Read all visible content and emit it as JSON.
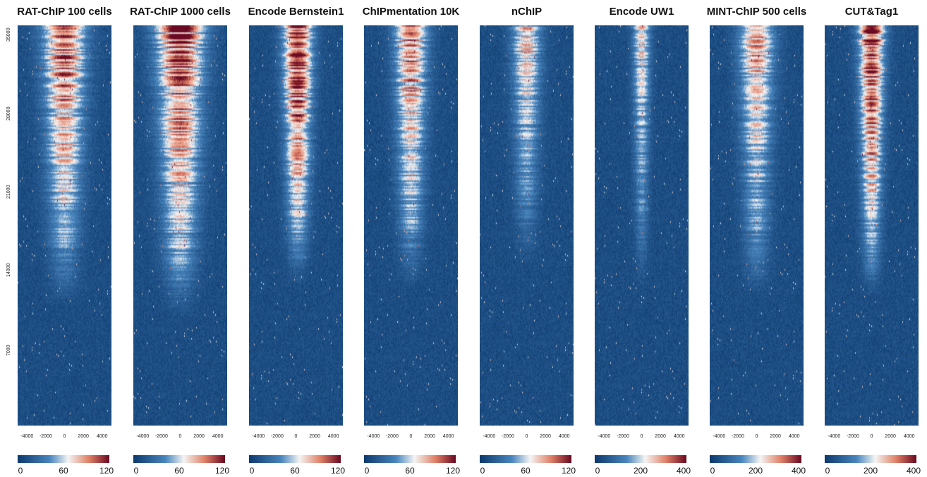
{
  "chart_data": {
    "type": "heatmap",
    "title": "",
    "xlabel": "",
    "ylabel": "",
    "grid": false,
    "colors": {
      "low": "#0d3a6e",
      "mid_low": "#4a86be",
      "mid": "#f5f5f5",
      "mid_high": "#e08066",
      "high": "#6b0a22"
    },
    "x_range": [
      -5000,
      5000
    ],
    "x_ticks": [
      -4000,
      -2000,
      0,
      2000,
      4000
    ],
    "y_range": [
      0,
      35700
    ],
    "y_ticks": [
      7000,
      14000,
      21000,
      28000,
      35000
    ],
    "panels": [
      {
        "name": "RAT-ChIP 100 cells",
        "colorbar": {
          "min": 0,
          "max": 120,
          "ticks": [
            0,
            60,
            120
          ]
        },
        "signal_strength": 0.78,
        "signal_width": 2200,
        "signal_rows_from_top": 0.52,
        "signal_offset": 0
      },
      {
        "name": "RAT-ChIP 1000 cells",
        "colorbar": {
          "min": 0,
          "max": 120,
          "ticks": [
            0,
            60,
            120
          ]
        },
        "signal_strength": 0.85,
        "signal_width": 2400,
        "signal_rows_from_top": 0.55,
        "signal_offset": 0
      },
      {
        "name": "Encode Bernstein1",
        "colorbar": {
          "min": 0,
          "max": 120,
          "ticks": [
            0,
            60,
            120
          ]
        },
        "signal_strength": 0.95,
        "signal_width": 1500,
        "signal_rows_from_top": 0.47,
        "signal_offset": 200
      },
      {
        "name": "ChIPmentation 10K",
        "colorbar": {
          "min": 0,
          "max": 120,
          "ticks": [
            0,
            60,
            120
          ]
        },
        "signal_strength": 0.72,
        "signal_width": 1700,
        "signal_rows_from_top": 0.48,
        "signal_offset": 0
      },
      {
        "name": "nChIP",
        "colorbar": {
          "min": 0,
          "max": 120,
          "ticks": [
            0,
            60,
            120
          ]
        },
        "signal_strength": 0.55,
        "signal_width": 1500,
        "signal_rows_from_top": 0.42,
        "signal_offset": 0
      },
      {
        "name": "Encode UW1",
        "colorbar": {
          "min": 0,
          "max": 400,
          "ticks": [
            0,
            200,
            400
          ]
        },
        "signal_strength": 0.5,
        "signal_width": 900,
        "signal_rows_from_top": 0.48,
        "signal_offset": 0
      },
      {
        "name": "MINT-ChIP 500 cells",
        "colorbar": {
          "min": 0,
          "max": 400,
          "ticks": [
            0,
            200,
            400
          ]
        },
        "signal_strength": 0.65,
        "signal_width": 1800,
        "signal_rows_from_top": 0.5,
        "signal_offset": 0
      },
      {
        "name": "CUT&Tag1",
        "colorbar": {
          "min": 0,
          "max": 400,
          "ticks": [
            0,
            200,
            400
          ]
        },
        "signal_strength": 0.95,
        "signal_width": 1300,
        "signal_rows_from_top": 0.5,
        "signal_offset": 0
      }
    ]
  }
}
